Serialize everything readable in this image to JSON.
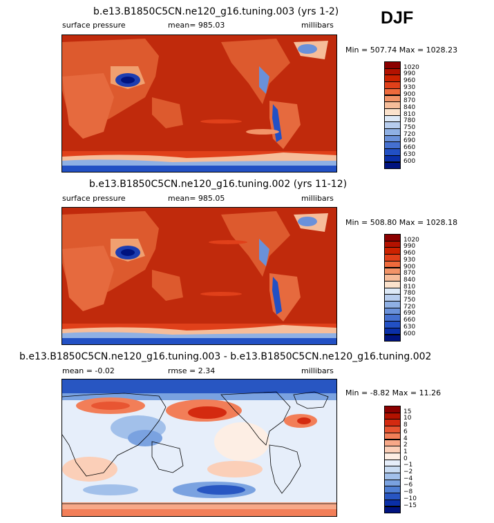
{
  "season": "DJF",
  "panels": [
    {
      "title": "b.e13.B1850C5CN.ne120_g16.tuning.003 (yrs 1-2)",
      "variable": "surface pressure",
      "stat": "mean= 985.03",
      "units": "millibars",
      "minmax": "Min = 507.74 Max = 1028.23",
      "colorbar": {
        "labels": [
          "1020",
          "990",
          "960",
          "930",
          "900",
          "870",
          "840",
          "810",
          "780",
          "750",
          "720",
          "690",
          "660",
          "630",
          "600"
        ],
        "colors": [
          "#8b0000",
          "#b31200",
          "#cc2200",
          "#e0401a",
          "#ee6a3c",
          "#f29468",
          "#f6bd9a",
          "#fbe2cc",
          "#dde9f7",
          "#b7cdee",
          "#8fb0e4",
          "#6a91da",
          "#4570d0",
          "#2250c4",
          "#0a2fa8",
          "#00137f"
        ]
      }
    },
    {
      "title": "b.e13.B1850C5CN.ne120_g16.tuning.002 (yrs 11-12)",
      "variable": "surface pressure",
      "stat": "mean= 985.05",
      "units": "millibars",
      "minmax": "Min = 508.80 Max = 1028.18",
      "colorbar": {
        "labels": [
          "1020",
          "990",
          "960",
          "930",
          "900",
          "870",
          "840",
          "810",
          "780",
          "750",
          "720",
          "690",
          "660",
          "630",
          "600"
        ],
        "colors": [
          "#8b0000",
          "#b31200",
          "#cc2200",
          "#e0401a",
          "#ee6a3c",
          "#f29468",
          "#f6bd9a",
          "#fbe2cc",
          "#dde9f7",
          "#b7cdee",
          "#8fb0e4",
          "#6a91da",
          "#4570d0",
          "#2250c4",
          "#0a2fa8",
          "#00137f"
        ]
      }
    },
    {
      "title": "b.e13.B1850C5CN.ne120_g16.tuning.003 - b.e13.B1850C5CN.ne120_g16.tuning.002",
      "stat_left": "mean =   -0.02",
      "stat_mid": "rmse =    2.34",
      "units": "millibars",
      "minmax": "Min =   -8.82 Max =   11.26",
      "colorbar": {
        "labels": [
          "15",
          "10",
          "8",
          "6",
          "4",
          "2",
          "1",
          "0",
          "−1",
          "−2",
          "−4",
          "−6",
          "−8",
          "−10",
          "−15"
        ],
        "colors": [
          "#8b0000",
          "#b31200",
          "#d42a10",
          "#e85532",
          "#f27e58",
          "#f7a888",
          "#fbcfb8",
          "#fdeee4",
          "#e6eefa",
          "#c9dcf3",
          "#a2c0ea",
          "#7aa2e0",
          "#4f7fd4",
          "#2856c2",
          "#0a2fa8",
          "#00137f"
        ]
      }
    }
  ],
  "chart_data": [
    {
      "type": "heatmap",
      "title": "b.e13.B1850C5CN.ne120_g16.tuning.003 (yrs 1-2)",
      "variable": "surface pressure",
      "units": "millibars",
      "mean": 985.03,
      "min": 507.74,
      "max": 1028.23,
      "contour_levels": [
        600,
        630,
        660,
        690,
        720,
        750,
        780,
        810,
        840,
        870,
        900,
        930,
        960,
        990,
        1020
      ],
      "season": "DJF",
      "projection": "cylindrical equidistant, centered on Pacific"
    },
    {
      "type": "heatmap",
      "title": "b.e13.B1850C5CN.ne120_g16.tuning.002 (yrs 11-12)",
      "variable": "surface pressure",
      "units": "millibars",
      "mean": 985.05,
      "min": 508.8,
      "max": 1028.18,
      "contour_levels": [
        600,
        630,
        660,
        690,
        720,
        750,
        780,
        810,
        840,
        870,
        900,
        930,
        960,
        990,
        1020
      ],
      "season": "DJF"
    },
    {
      "type": "heatmap",
      "title": "b.e13.B1850C5CN.ne120_g16.tuning.003 - b.e13.B1850C5CN.ne120_g16.tuning.002",
      "units": "millibars",
      "mean": -0.02,
      "rmse": 2.34,
      "min": -8.82,
      "max": 11.26,
      "contour_levels": [
        -15,
        -10,
        -8,
        -6,
        -4,
        -2,
        -1,
        0,
        1,
        2,
        4,
        6,
        8,
        10,
        15
      ],
      "season": "DJF"
    }
  ]
}
